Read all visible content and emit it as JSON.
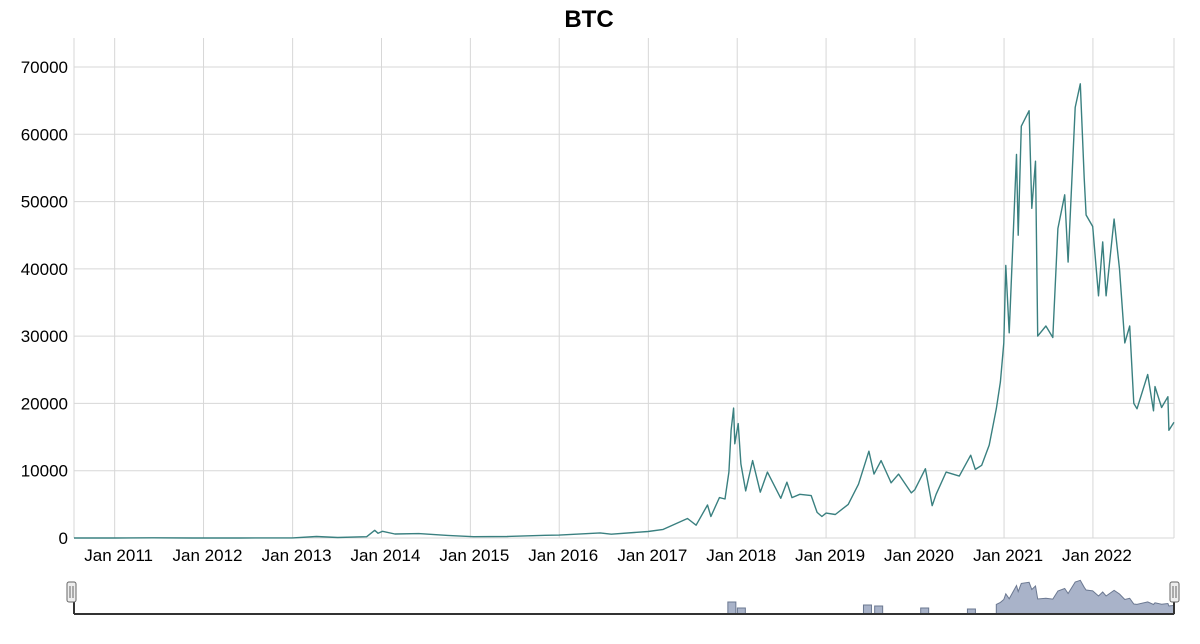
{
  "chart_data": {
    "type": "line",
    "title": "BTC",
    "xlabel": "",
    "ylabel": "",
    "x_range": [
      "2010-07-18",
      "2022-11-30"
    ],
    "ylim": [
      0,
      74000
    ],
    "grid": true,
    "colors": {
      "line": "#3a8080",
      "grid": "#d7d7d7",
      "navigator_fill": "#a9b3c9",
      "navigator_line": "#6b7891"
    },
    "y_ticks": [
      0,
      10000,
      20000,
      30000,
      40000,
      50000,
      60000,
      70000
    ],
    "y_tick_labels": [
      "0",
      "10000",
      "20000",
      "30000",
      "40000",
      "50000",
      "60000",
      "70000"
    ],
    "x_ticks": [
      "2011-01-01",
      "2012-01-01",
      "2013-01-01",
      "2014-01-01",
      "2015-01-01",
      "2016-01-01",
      "2017-01-01",
      "2018-01-01",
      "2019-01-01",
      "2020-01-01",
      "2021-01-01",
      "2022-01-01"
    ],
    "x_tick_labels": [
      "Jan 2011",
      "Jan 2012",
      "Jan 2013",
      "Jan 2014",
      "Jan 2015",
      "Jan 2016",
      "Jan 2017",
      "Jan 2018",
      "Jan 2019",
      "Jan 2020",
      "Jan 2021",
      "Jan 2022"
    ],
    "series": [
      {
        "x": [
          "2010-07-18",
          "2011-01-01",
          "2011-06-08",
          "2011-11-18",
          "2012-06-01",
          "2012-12-31",
          "2013-04-09",
          "2013-07-05",
          "2013-11-01",
          "2013-12-04",
          "2013-12-18",
          "2014-01-05",
          "2014-02-25",
          "2014-06-03",
          "2014-09-30",
          "2015-01-14",
          "2015-06-01",
          "2015-11-04",
          "2016-01-01",
          "2016-06-17",
          "2016-08-02",
          "2016-12-31",
          "2017-03-03",
          "2017-06-11",
          "2017-07-16",
          "2017-09-01",
          "2017-09-15",
          "2017-10-20",
          "2017-11-12",
          "2017-11-28",
          "2017-12-07",
          "2017-12-17",
          "2017-12-22",
          "2018-01-05",
          "2018-01-16",
          "2018-02-05",
          "2018-03-05",
          "2018-04-06",
          "2018-05-05",
          "2018-06-29",
          "2018-07-24",
          "2018-08-14",
          "2018-09-15",
          "2018-11-01",
          "2018-11-25",
          "2018-12-15",
          "2019-01-01",
          "2019-02-08",
          "2019-04-02",
          "2019-05-14",
          "2019-06-26",
          "2019-07-17",
          "2019-08-15",
          "2019-09-25",
          "2019-10-26",
          "2019-12-17",
          "2020-01-01",
          "2020-02-13",
          "2020-03-12",
          "2020-03-28",
          "2020-05-08",
          "2020-07-01",
          "2020-08-17",
          "2020-09-05",
          "2020-10-01",
          "2020-11-01",
          "2020-11-30",
          "2020-12-17",
          "2020-12-31",
          "2021-01-08",
          "2021-01-22",
          "2021-02-21",
          "2021-02-28",
          "2021-03-13",
          "2021-04-14",
          "2021-04-25",
          "2021-05-10",
          "2021-05-19",
          "2021-06-22",
          "2021-07-20",
          "2021-08-10",
          "2021-09-07",
          "2021-09-21",
          "2021-10-20",
          "2021-11-10",
          "2021-11-26",
          "2021-12-04",
          "2021-12-31",
          "2022-01-24",
          "2022-02-10",
          "2022-02-24",
          "2022-03-29",
          "2022-04-20",
          "2022-05-12",
          "2022-06-01",
          "2022-06-18",
          "2022-07-01",
          "2022-08-14",
          "2022-09-07",
          "2022-09-13",
          "2022-10-10",
          "2022-11-05",
          "2022-11-09",
          "2022-11-30"
        ],
        "y": [
          0,
          0,
          30,
          3,
          5,
          13,
          230,
          70,
          200,
          1150,
          700,
          1000,
          600,
          650,
          380,
          200,
          230,
          400,
          430,
          760,
          570,
          960,
          1280,
          2900,
          1900,
          4900,
          3200,
          6000,
          5800,
          9800,
          16000,
          19300,
          14000,
          17000,
          11000,
          7000,
          11500,
          6800,
          9800,
          5900,
          8300,
          6000,
          6500,
          6300,
          3800,
          3200,
          3700,
          3500,
          5000,
          8000,
          12900,
          9500,
          11500,
          8200,
          9500,
          6700,
          7200,
          10300,
          4800,
          6500,
          9800,
          9200,
          12300,
          10200,
          10800,
          13800,
          19200,
          23200,
          29000,
          40500,
          30500,
          57000,
          45000,
          61200,
          63500,
          49000,
          56000,
          30000,
          31500,
          29800,
          46000,
          51000,
          41000,
          64000,
          67500,
          53500,
          48000,
          46300,
          36000,
          44000,
          36000,
          47400,
          40000,
          29000,
          31500,
          20000,
          19200,
          24300,
          18900,
          22500,
          19400,
          21000,
          16000,
          17200
        ]
      }
    ]
  }
}
